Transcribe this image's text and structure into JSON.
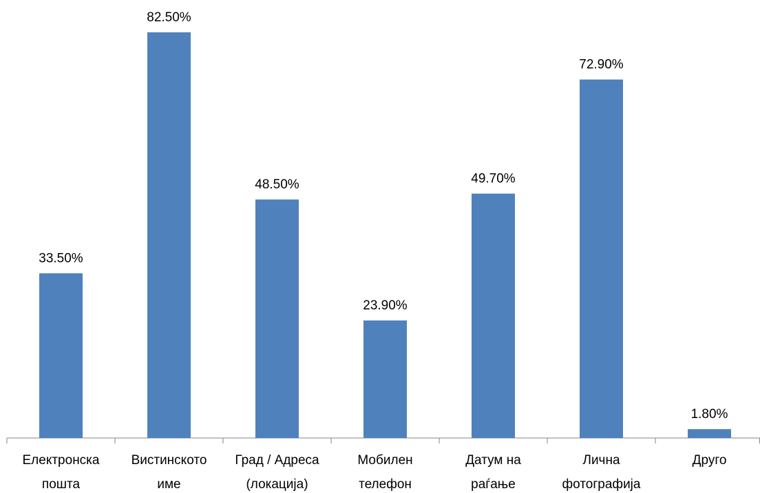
{
  "chart_data": {
    "type": "bar",
    "categories": [
      "Електронска\nпошта",
      "Вистинското\nиме",
      "Град / Адреса\n(локација)",
      "Мобилен\nтелефон",
      "Датум на\nраѓање",
      "Лична\nфотографија",
      "Друго"
    ],
    "values": [
      33.5,
      82.5,
      48.5,
      23.9,
      49.7,
      72.9,
      1.8
    ],
    "value_labels": [
      "33.50%",
      "82.50%",
      "48.50%",
      "23.90%",
      "49.70%",
      "72.90%",
      "1.80%"
    ],
    "color": "#4f81bd"
  }
}
